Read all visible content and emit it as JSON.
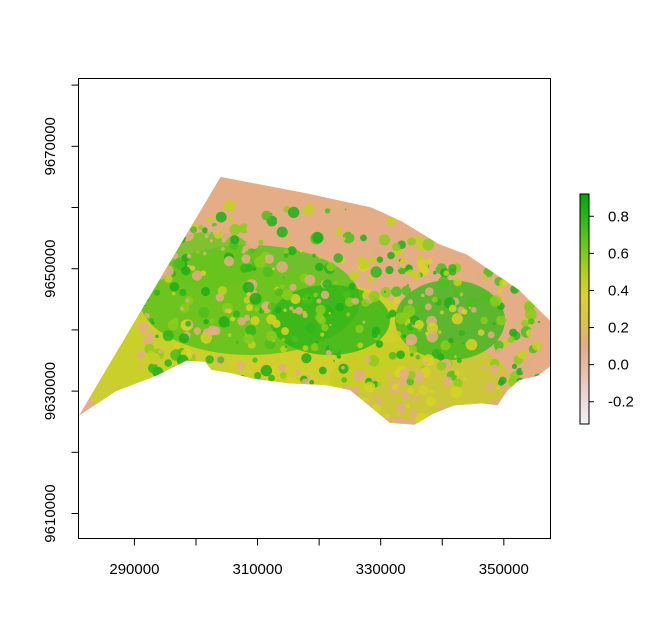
{
  "chart_data": {
    "type": "heatmap",
    "title": "",
    "xlabel": "",
    "ylabel": "",
    "xlim": [
      281000,
      357500
    ],
    "ylim": [
      9606000,
      9681000
    ],
    "x_ticks": [
      280000,
      290000,
      300000,
      310000,
      320000,
      330000,
      340000,
      350000
    ],
    "x_tick_labels": [
      "290000",
      "310000",
      "330000",
      "350000"
    ],
    "x_tick_label_values": [
      290000,
      310000,
      330000,
      350000
    ],
    "y_ticks": [
      9610000,
      9620000,
      9630000,
      9640000,
      9650000,
      9660000,
      9670000,
      9680000
    ],
    "y_tick_labels": [
      "9610000",
      "9630000",
      "9650000",
      "9670000"
    ],
    "y_tick_label_values": [
      9610000,
      9630000,
      9650000,
      9670000
    ],
    "legend": {
      "range": [
        -0.32,
        0.92
      ],
      "ticks": [
        -0.2,
        0.0,
        0.2,
        0.4,
        0.6,
        0.8
      ],
      "tick_labels": [
        "-0.2",
        "0.0",
        "0.2",
        "0.4",
        "0.6",
        "0.8"
      ],
      "placement": "right",
      "colors": [
        "#f2f2f2",
        "#efd8d8",
        "#e9c0ab",
        "#e3ab85",
        "#dcc14e",
        "#d9d424",
        "#acd01a",
        "#6ac81a",
        "#2db91a",
        "#00a600"
      ]
    },
    "grid": false,
    "region_outline": [
      [
        281000,
        9626000
      ],
      [
        287000,
        9630000
      ],
      [
        293500,
        9632500
      ],
      [
        298500,
        9635000
      ],
      [
        301500,
        9634800
      ],
      [
        302500,
        9633500
      ],
      [
        305500,
        9633000
      ],
      [
        309500,
        9632000
      ],
      [
        315000,
        9631300
      ],
      [
        321000,
        9631000
      ],
      [
        325000,
        9630200
      ],
      [
        328500,
        9627300
      ],
      [
        331500,
        9624800
      ],
      [
        335500,
        9624500
      ],
      [
        338500,
        9626300
      ],
      [
        342000,
        9627700
      ],
      [
        346500,
        9628000
      ],
      [
        349000,
        9627700
      ],
      [
        350500,
        9630000
      ],
      [
        352500,
        9631800
      ],
      [
        355500,
        9632500
      ],
      [
        357500,
        9634000
      ],
      [
        357500,
        9641500
      ],
      [
        352500,
        9646500
      ],
      [
        344000,
        9652300
      ],
      [
        339500,
        9654000
      ],
      [
        333500,
        9657700
      ],
      [
        328500,
        9660000
      ],
      [
        318000,
        9662300
      ],
      [
        304000,
        9665000
      ]
    ]
  }
}
